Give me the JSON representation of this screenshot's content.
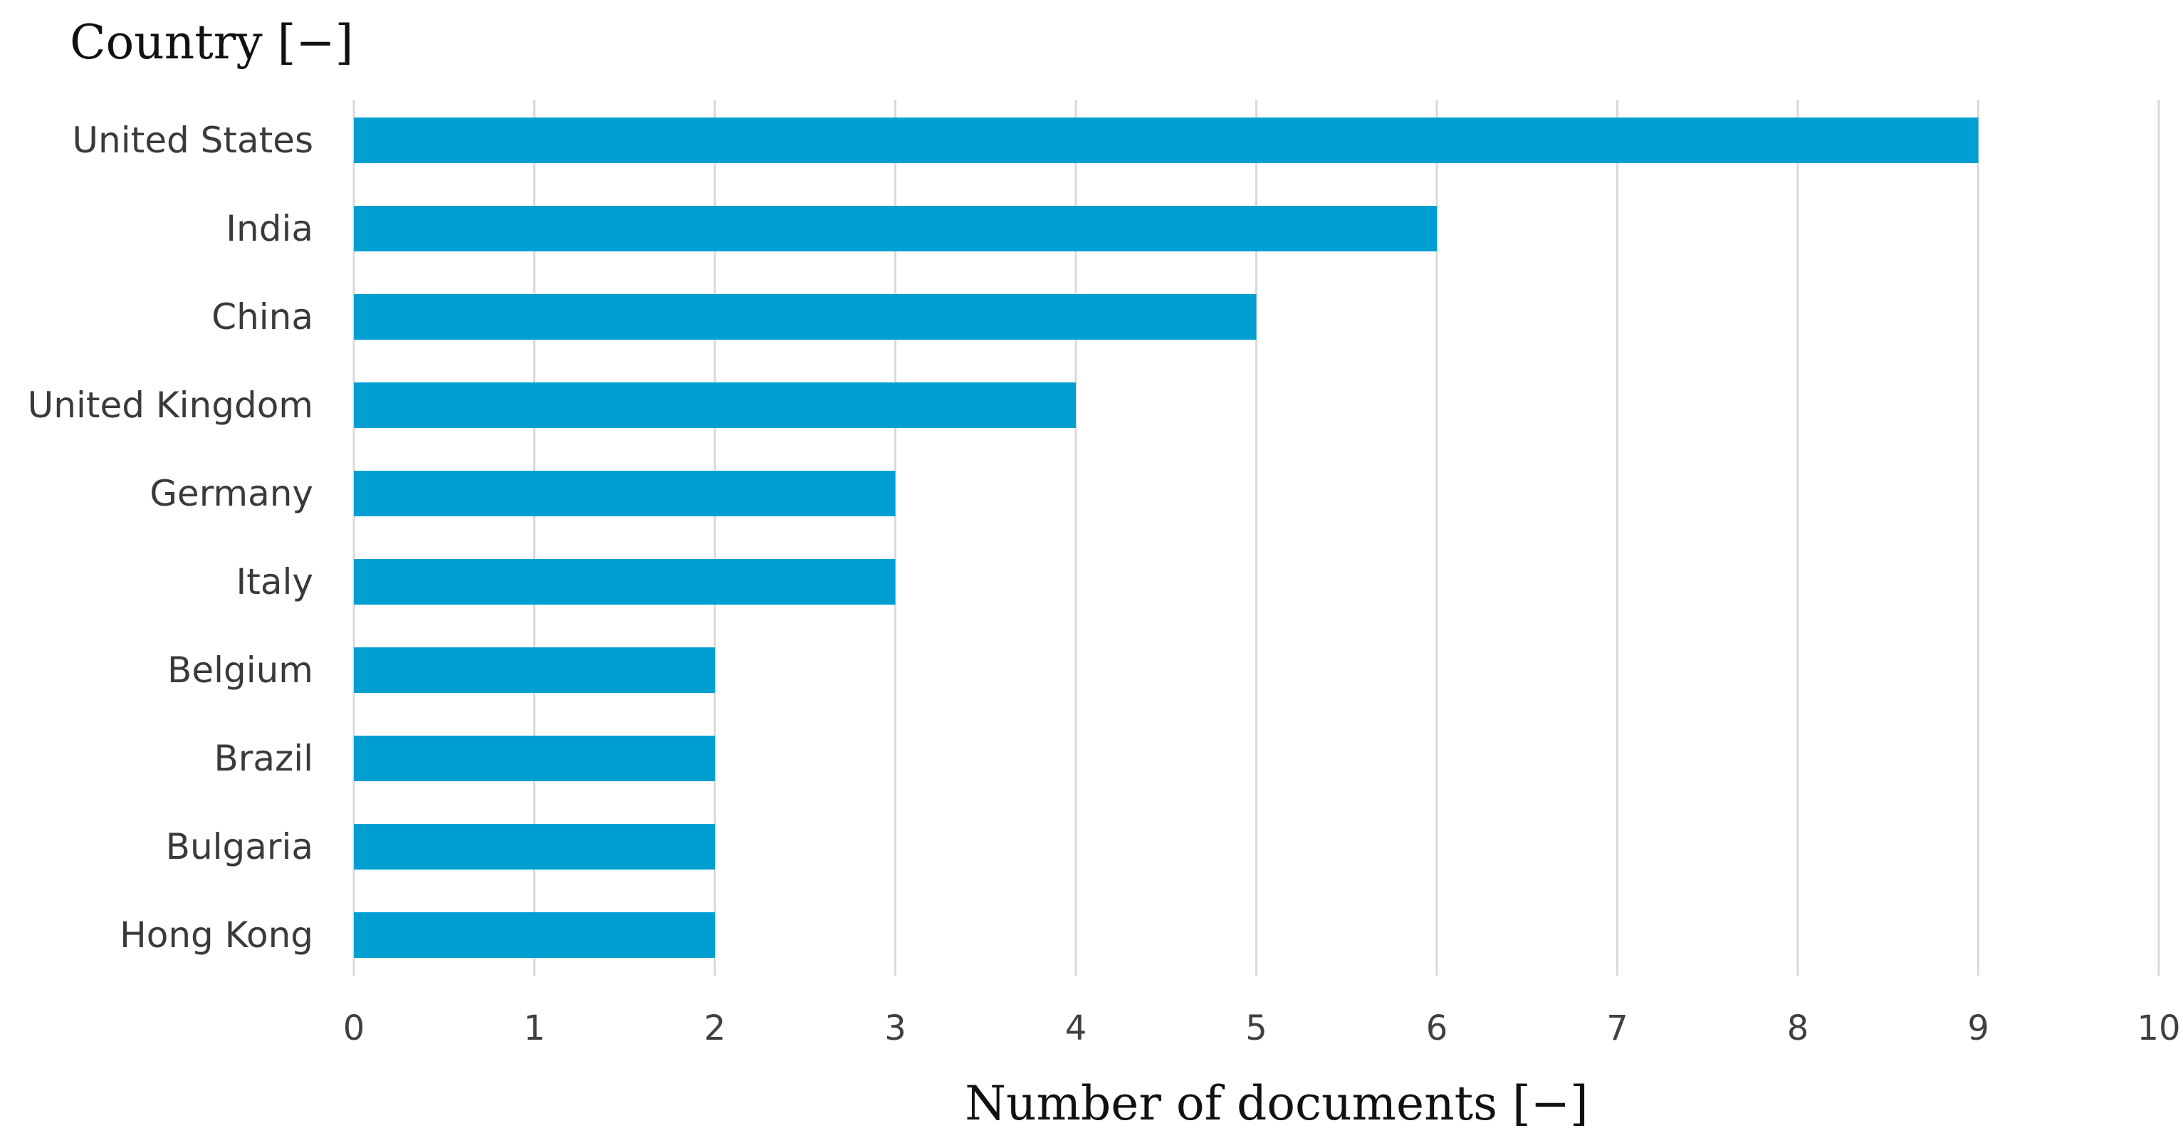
{
  "chart_data": {
    "type": "bar",
    "orientation": "horizontal",
    "categories": [
      "United States",
      "India",
      "China",
      "United Kingdom",
      "Germany",
      "Italy",
      "Belgium",
      "Brazil",
      "Bulgaria",
      "Hong Kong"
    ],
    "values": [
      9,
      6,
      5,
      4,
      3,
      3,
      2,
      2,
      2,
      2
    ],
    "xlabel": "Number of documents [−]",
    "ylabel": "Country [−]",
    "xlim": [
      0,
      10
    ],
    "xticks": [
      "0",
      "1",
      "2",
      "3",
      "4",
      "5",
      "6",
      "7",
      "8",
      "9",
      "10"
    ],
    "grid": "vertical",
    "legend": "none"
  },
  "colors": {
    "bar": "#009FD1",
    "gridline": "#D9D9D9",
    "tick_text": "#404040",
    "category_text": "#3A3A3A",
    "axis_title_text": "#111111"
  }
}
